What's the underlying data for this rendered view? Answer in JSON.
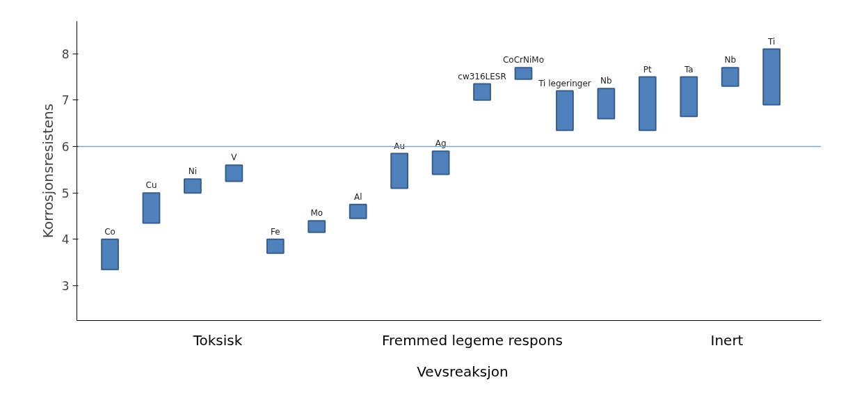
{
  "chart_data": {
    "type": "bar",
    "xlabel": "Vevsreaksjon",
    "ylabel": "Korrosjonsresistens",
    "categories": [
      "Co",
      "Cu",
      "Ni",
      "V",
      "Fe",
      "Mo",
      "Al",
      "Au",
      "Ag",
      "cw316LESR",
      "CoCrNiMo",
      "Ti legeringer",
      "Nb",
      "Pt",
      "Ta",
      "Nb",
      "Ti"
    ],
    "base": [
      3.35,
      4.35,
      5.0,
      5.25,
      3.7,
      4.15,
      4.45,
      5.1,
      5.4,
      7.0,
      7.45,
      6.35,
      6.6,
      6.35,
      6.65,
      7.3,
      6.9
    ],
    "values": [
      0.65,
      0.65,
      0.3,
      0.35,
      0.3,
      0.25,
      0.3,
      0.75,
      0.5,
      0.35,
      0.25,
      0.85,
      0.65,
      1.15,
      0.85,
      0.4,
      1.2
    ],
    "color": "#4f81bd",
    "ylim": [
      2.25,
      8.7
    ],
    "yticks": [
      3,
      4,
      5,
      6,
      7,
      8
    ],
    "tick_labels": "y",
    "grid": false,
    "ref_lines": [
      {
        "axis": "y",
        "value": 6,
        "color": "#7ba6d1"
      }
    ],
    "annotations": [
      "Toksisk",
      "Fremmed legeme respons",
      "Inert"
    ]
  }
}
